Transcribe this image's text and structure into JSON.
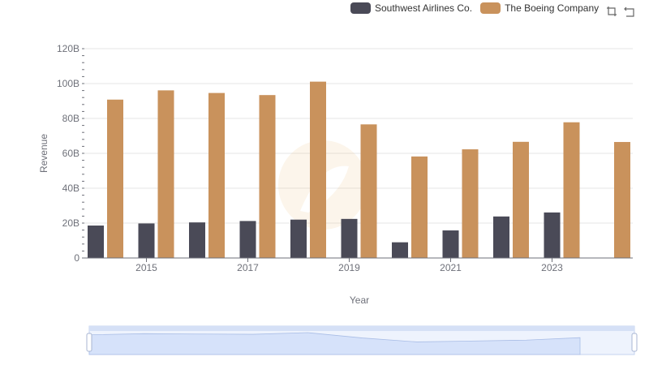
{
  "legend": {
    "items": [
      {
        "label": "Southwest Airlines Co.",
        "color": "#4a4a57"
      },
      {
        "label": "The Boeing Company",
        "color": "#c9925c"
      }
    ]
  },
  "toolbox": {
    "zoom_icon": "zoom-icon",
    "restore_icon": "restore-icon"
  },
  "colors": {
    "southwest": "#4a4a57",
    "boeing": "#c9925c",
    "slider_fill": "#d6e2fa",
    "slider_border": "#c4d3ef"
  },
  "chart_data": {
    "type": "bar",
    "categories": [
      "2014",
      "2015",
      "2016",
      "2017",
      "2018",
      "2019",
      "2020",
      "2021",
      "2022",
      "2023",
      "2024"
    ],
    "x_tick_labels": [
      "2015",
      "2017",
      "2019",
      "2021",
      "2023"
    ],
    "series": [
      {
        "name": "Southwest Airlines Co.",
        "values": [
          18.6,
          19.8,
          20.4,
          21.2,
          22.0,
          22.4,
          9.0,
          15.8,
          23.8,
          26.1,
          null
        ]
      },
      {
        "name": "The Boeing Company",
        "values": [
          90.8,
          96.1,
          94.6,
          93.4,
          101.1,
          76.6,
          58.2,
          62.3,
          66.6,
          77.8,
          66.5
        ]
      }
    ],
    "xlabel": "Year",
    "ylabel": "Revenue",
    "ylim": [
      0,
      120
    ],
    "y_ticks": [
      "0",
      "20B",
      "40B",
      "60B",
      "80B",
      "100B",
      "120B"
    ],
    "grid": true,
    "legend_position": "top-right",
    "has_data_zoom_slider": true
  }
}
